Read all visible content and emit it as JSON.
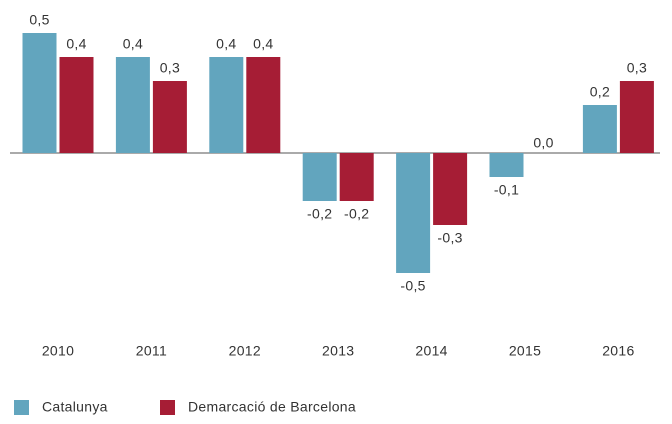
{
  "chart_data": {
    "type": "bar",
    "categories": [
      "2010",
      "2011",
      "2012",
      "2013",
      "2014",
      "2015",
      "2016"
    ],
    "series": [
      {
        "name": "Catalunya",
        "color": "#62a5be",
        "values": [
          0.5,
          0.4,
          0.4,
          -0.2,
          -0.5,
          -0.1,
          0.2
        ],
        "value_labels": [
          "0,5",
          "0,4",
          "0,4",
          "-0,2",
          "-0,5",
          "-0,1",
          "0,2"
        ]
      },
      {
        "name": "Demarcació de Barcelona",
        "color": "#a61d35",
        "values": [
          0.4,
          0.3,
          0.4,
          -0.2,
          -0.3,
          0.0,
          0.3
        ],
        "value_labels": [
          "0,4",
          "0,3",
          "0,4",
          "-0,2",
          "-0,3",
          "0,0",
          "0,3"
        ]
      }
    ],
    "legend": "bottom-left"
  }
}
